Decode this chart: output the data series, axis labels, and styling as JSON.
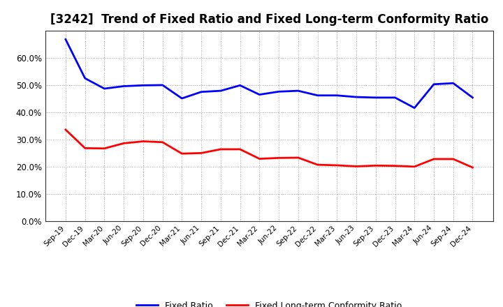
{
  "title": "[3242]  Trend of Fixed Ratio and Fixed Long-term Conformity Ratio",
  "title_fontsize": 12,
  "background_color": "#ffffff",
  "plot_background_color": "#ffffff",
  "grid_color": "#aaaaaa",
  "ylim": [
    0.0,
    0.7
  ],
  "yticks": [
    0.0,
    0.1,
    0.2,
    0.3,
    0.4,
    0.5,
    0.6
  ],
  "x_labels": [
    "Sep-19",
    "Dec-19",
    "Mar-20",
    "Jun-20",
    "Sep-20",
    "Dec-20",
    "Mar-21",
    "Jun-21",
    "Sep-21",
    "Dec-21",
    "Mar-22",
    "Jun-22",
    "Sep-22",
    "Dec-22",
    "Mar-23",
    "Jun-23",
    "Sep-23",
    "Dec-23",
    "Mar-24",
    "Jun-24",
    "Sep-24",
    "Dec-24"
  ],
  "fixed_ratio": [
    0.668,
    0.525,
    0.487,
    0.496,
    0.499,
    0.5,
    0.451,
    0.475,
    0.479,
    0.499,
    0.465,
    0.476,
    0.479,
    0.462,
    0.462,
    0.456,
    0.454,
    0.454,
    0.416,
    0.503,
    0.507,
    0.454
  ],
  "fixed_long_term": [
    0.336,
    0.268,
    0.267,
    0.286,
    0.293,
    0.29,
    0.248,
    0.25,
    0.264,
    0.264,
    0.229,
    0.232,
    0.233,
    0.207,
    0.205,
    0.201,
    0.204,
    0.203,
    0.2,
    0.228,
    0.228,
    0.197
  ],
  "blue_color": "#0000ff",
  "red_color": "#ff0000",
  "line_width": 2.0,
  "legend_fixed_ratio": "Fixed Ratio",
  "legend_fixed_long_term": "Fixed Long-term Conformity Ratio"
}
